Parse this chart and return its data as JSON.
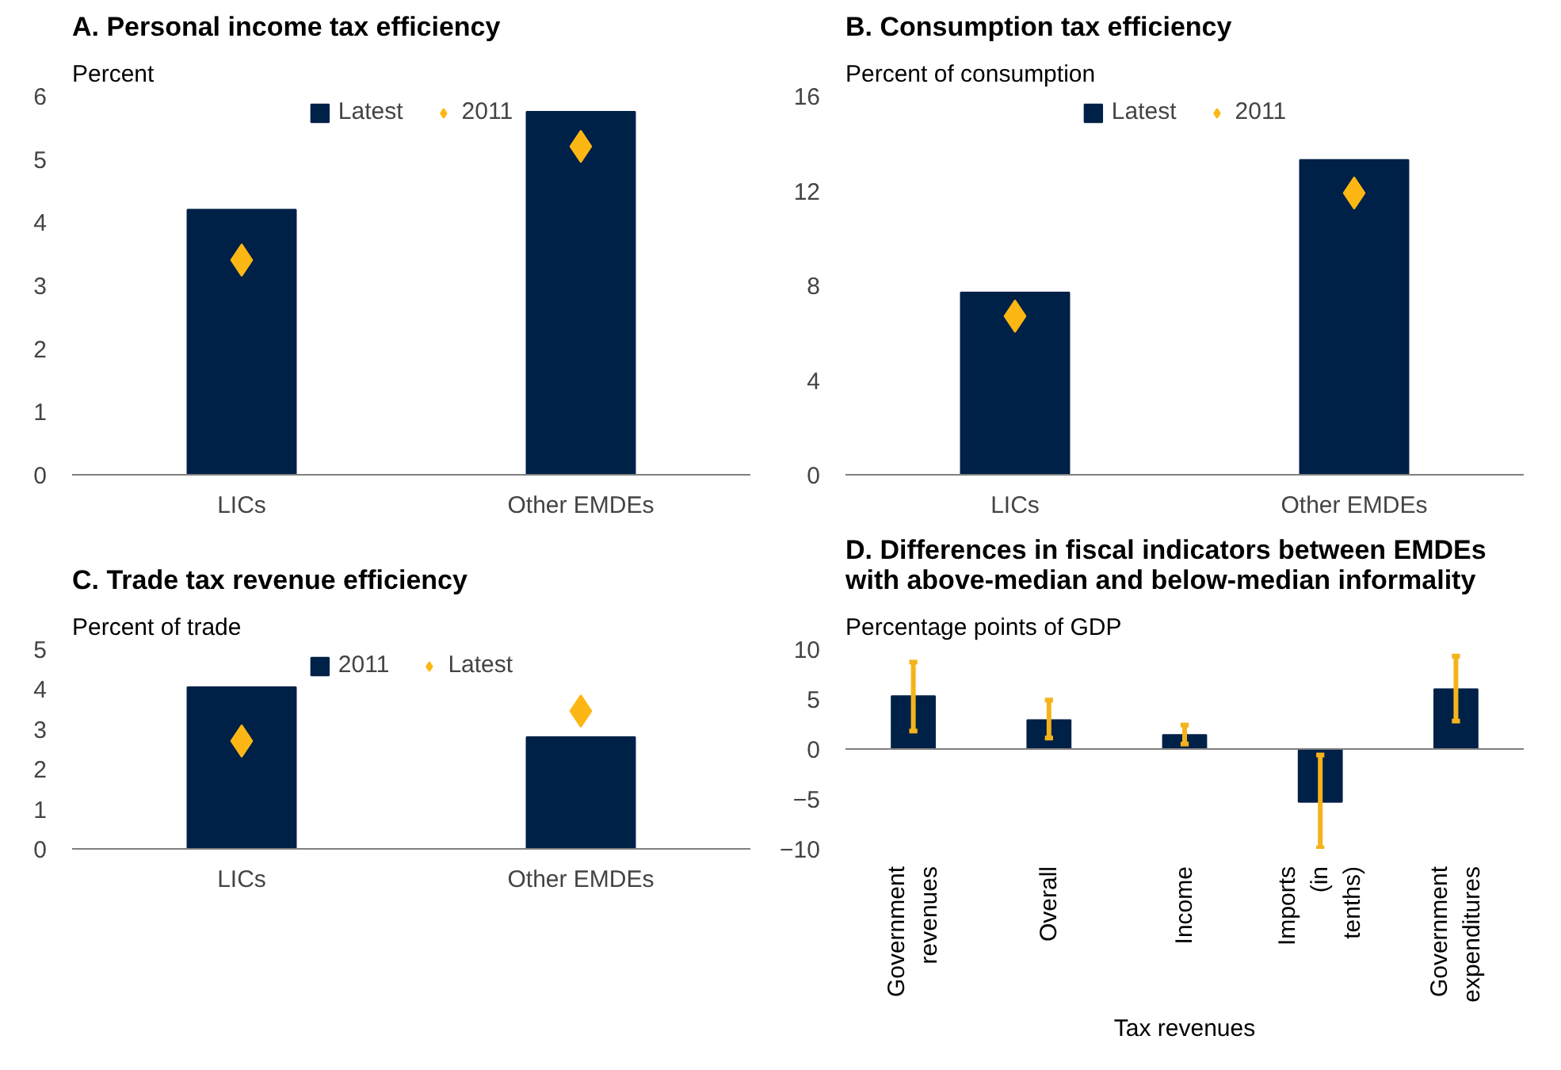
{
  "chart_data": [
    {
      "type": "bar",
      "title": "A. Personal income tax efficiency",
      "ylabel": "Percent",
      "categories": [
        "LICs",
        "Other EMDEs"
      ],
      "series": [
        {
          "name": "Latest",
          "type": "bar",
          "color": "#002147",
          "values": [
            4.2,
            5.75
          ]
        },
        {
          "name": "2011",
          "type": "scatter",
          "color": "#fdb714",
          "values": [
            3.4,
            5.2
          ]
        }
      ],
      "marker": "diamond",
      "ylim": [
        0,
        6
      ],
      "yticks": [
        0,
        1,
        2,
        3,
        4,
        5,
        6
      ],
      "grid": false,
      "legend": "top"
    },
    {
      "type": "bar",
      "title": "B. Consumption tax efficiency",
      "ylabel": "Percent of consumption",
      "categories": [
        "LICs",
        "Other EMDEs"
      ],
      "series": [
        {
          "name": "Latest",
          "type": "bar",
          "color": "#002147",
          "values": [
            7.7,
            13.3
          ]
        },
        {
          "name": "2011",
          "type": "scatter",
          "color": "#fdb714",
          "values": [
            6.7,
            11.9
          ]
        }
      ],
      "marker": "diamond",
      "ylim": [
        0,
        16
      ],
      "yticks": [
        0,
        4,
        8,
        12,
        16
      ],
      "grid": false,
      "legend": "top"
    },
    {
      "type": "bar",
      "title": "C. Trade tax revenue efficiency",
      "ylabel": "Percent of trade",
      "categories": [
        "LICs",
        "Other EMDEs"
      ],
      "series": [
        {
          "name": "2011",
          "type": "bar",
          "color": "#002147",
          "values": [
            4.05,
            2.8
          ]
        },
        {
          "name": "Latest",
          "type": "scatter",
          "color": "#fdb714",
          "values": [
            2.7,
            3.45
          ]
        }
      ],
      "marker": "diamond",
      "ylim": [
        0,
        5
      ],
      "yticks": [
        0,
        1,
        2,
        3,
        4,
        5
      ],
      "grid": false,
      "legend": "top"
    },
    {
      "type": "bar",
      "title": "D. Differences in fiscal indicators between EMDEs with above-median and below-median informality",
      "ylabel": "Percentage points of GDP",
      "categories": [
        "Government revenues",
        "Overall",
        "Income",
        "Imports (in tenths)",
        "Government expenditures"
      ],
      "series": [
        {
          "color": "#002147",
          "values": [
            5.3,
            2.9,
            1.4,
            -5.3,
            6.0
          ],
          "errors": [
            [
              1.8,
              8.7
            ],
            [
              1.1,
              4.9
            ],
            [
              0.5,
              2.4
            ],
            [
              -9.9,
              -0.6
            ],
            [
              2.8,
              9.3
            ]
          ]
        }
      ],
      "ylim": [
        -10,
        10
      ],
      "yticks": [
        -10,
        -5,
        0,
        5,
        10
      ],
      "grid": false,
      "legend": false,
      "ref_lines": [
        {
          "axis": "y",
          "value": 0,
          "color": "#808080"
        }
      ],
      "annotations": [
        "Tax revenues"
      ]
    }
  ]
}
